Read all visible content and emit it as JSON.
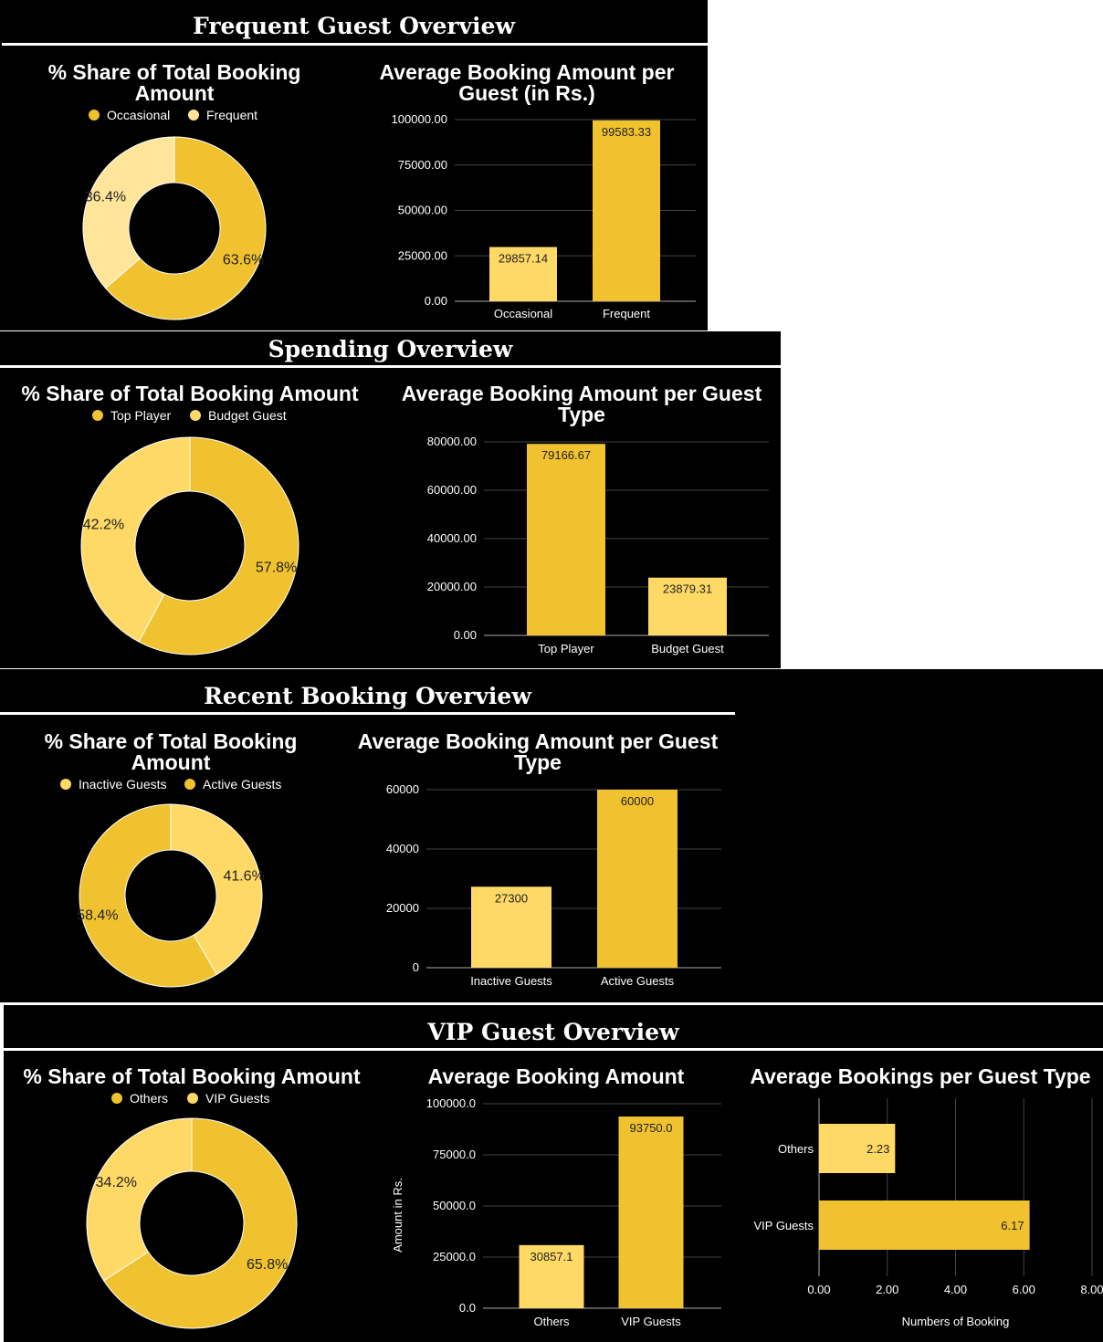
{
  "colors": {
    "dark": "#F0C230",
    "light": "#FFD966",
    "pale": "#FFE599",
    "background": "#000000",
    "text": "#ffffff"
  },
  "sections": [
    {
      "title": "Frequent Guest Overview"
    },
    {
      "title": "Spending Overview"
    },
    {
      "title": "Recent Booking Overview"
    },
    {
      "title": "VIP Guest Overview"
    }
  ],
  "chart_data": [
    {
      "type": "pie",
      "donut": true,
      "title": [
        "% Share of Total Booking",
        "Amount"
      ],
      "legend_position": "top",
      "slices": [
        {
          "name": "Occasional",
          "value": 63.6,
          "label": "63.6%"
        },
        {
          "name": "Frequent",
          "value": 36.4,
          "label": "36.4%"
        }
      ]
    },
    {
      "type": "bar",
      "title": [
        "Average Booking Amount per",
        "Guest (in Rs.)"
      ],
      "categories": [
        "Occasional",
        "Frequent"
      ],
      "values": [
        29857.14,
        99583.33
      ],
      "value_labels": [
        "29857.14",
        "99583.33"
      ],
      "ylim": [
        0,
        100000
      ],
      "yticks": [
        "0.00",
        "25000.00",
        "50000.00",
        "75000.00",
        "100000.00"
      ],
      "ytick_values": [
        0,
        25000,
        50000,
        75000,
        100000
      ],
      "grid": true
    },
    {
      "type": "pie",
      "donut": true,
      "title": [
        "% Share of Total Booking Amount"
      ],
      "legend_position": "top",
      "slices": [
        {
          "name": "Top Player",
          "value": 57.8,
          "label": "57.8%"
        },
        {
          "name": "Budget Guest",
          "value": 42.2,
          "label": "42.2%"
        }
      ]
    },
    {
      "type": "bar",
      "title": [
        "Average Booking Amount per Guest",
        "Type"
      ],
      "categories": [
        "Top Player",
        "Budget Guest"
      ],
      "values": [
        79166.67,
        23879.31
      ],
      "value_labels": [
        "79166.67",
        "23879.31"
      ],
      "ylim": [
        0,
        80000
      ],
      "yticks": [
        "0.00",
        "20000.00",
        "40000.00",
        "60000.00",
        "80000.00"
      ],
      "ytick_values": [
        0,
        20000,
        40000,
        60000,
        80000
      ],
      "grid": true
    },
    {
      "type": "pie",
      "donut": true,
      "title": [
        "% Share of Total Booking",
        "Amount"
      ],
      "legend_position": "top",
      "slices": [
        {
          "name": "Inactive Guests",
          "value": 41.6,
          "label": "41.6%"
        },
        {
          "name": "Active Guests",
          "value": 58.4,
          "label": "58.4%"
        }
      ]
    },
    {
      "type": "bar",
      "title": [
        "Average Booking Amount per Guest",
        "Type"
      ],
      "categories": [
        "Inactive Guests",
        "Active Guests"
      ],
      "values": [
        27300,
        60000
      ],
      "value_labels": [
        "27300",
        "60000"
      ],
      "ylim": [
        0,
        60000
      ],
      "yticks": [
        "0",
        "20000",
        "40000",
        "60000"
      ],
      "ytick_values": [
        0,
        20000,
        40000,
        60000
      ],
      "grid": true
    },
    {
      "type": "pie",
      "donut": true,
      "title": [
        "% Share of Total Booking Amount"
      ],
      "legend_position": "top",
      "slices": [
        {
          "name": "Others",
          "value": 65.8,
          "label": "65.8%"
        },
        {
          "name": "VIP Guests",
          "value": 34.2,
          "label": "34.2%"
        }
      ]
    },
    {
      "type": "bar",
      "title": [
        "Average Booking Amount"
      ],
      "categories": [
        "Others",
        "VIP Guests"
      ],
      "values": [
        30857.1,
        93750.0
      ],
      "value_labels": [
        "30857.1",
        "93750.0"
      ],
      "ylabel": "Amount in Rs.",
      "ylim": [
        0,
        100000
      ],
      "yticks": [
        "0.0",
        "25000.0",
        "50000.0",
        "75000.0",
        "100000.0"
      ],
      "ytick_values": [
        0,
        25000,
        50000,
        75000,
        100000
      ],
      "grid": true
    },
    {
      "type": "bar",
      "orientation": "horizontal",
      "title": [
        "Average Bookings per Guest Type"
      ],
      "categories": [
        "Others",
        "VIP Guests"
      ],
      "values": [
        2.23,
        6.17
      ],
      "value_labels": [
        "2.23",
        "6.17"
      ],
      "xlabel": "Numbers of Booking",
      "xlim": [
        0,
        8
      ],
      "xticks": [
        "0.00",
        "2.00",
        "4.00",
        "6.00",
        "8.00"
      ],
      "xtick_values": [
        0,
        2,
        4,
        6,
        8
      ],
      "grid": true
    }
  ]
}
